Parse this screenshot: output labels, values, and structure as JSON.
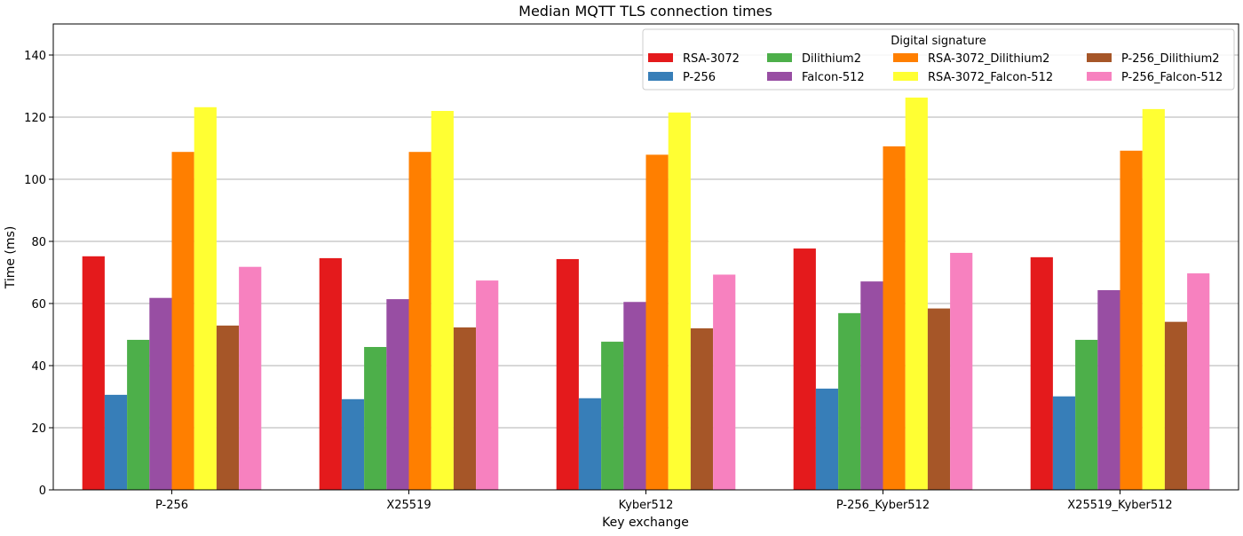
{
  "chart_data": {
    "type": "bar",
    "title": "Median MQTT TLS connection times",
    "xlabel": "Key exchange",
    "ylabel": "Time (ms)",
    "ylim": [
      0,
      150
    ],
    "yticks": [
      0,
      20,
      40,
      60,
      80,
      100,
      120,
      140
    ],
    "grid": "y-major",
    "legend": {
      "title": "Digital signature",
      "placement": "top-right",
      "columns": 4
    },
    "categories": [
      "P-256",
      "X25519",
      "Kyber512",
      "P-256_Kyber512",
      "X25519_Kyber512"
    ],
    "series": [
      {
        "name": "RSA-3072",
        "color": "#e41a1c",
        "values": [
          75.2,
          74.6,
          74.3,
          77.7,
          74.9
        ]
      },
      {
        "name": "P-256",
        "color": "#377eb8",
        "values": [
          30.6,
          29.2,
          29.5,
          32.6,
          30.1
        ]
      },
      {
        "name": "Dilithium2",
        "color": "#4daf4a",
        "values": [
          48.3,
          46.0,
          47.7,
          56.9,
          48.3
        ]
      },
      {
        "name": "Falcon-512",
        "color": "#984ea3",
        "values": [
          61.8,
          61.4,
          60.5,
          67.1,
          64.3
        ]
      },
      {
        "name": "RSA-3072_Dilithium2",
        "color": "#ff7f00",
        "values": [
          108.8,
          108.8,
          107.9,
          110.6,
          109.2
        ]
      },
      {
        "name": "RSA-3072_Falcon-512",
        "color": "#ffff33",
        "values": [
          123.2,
          122.0,
          121.5,
          126.3,
          122.6
        ]
      },
      {
        "name": "P-256_Dilithium2",
        "color": "#a65628",
        "values": [
          52.9,
          52.3,
          52.0,
          58.4,
          54.1
        ]
      },
      {
        "name": "P-256_Falcon-512",
        "color": "#f781bf",
        "values": [
          71.8,
          67.4,
          69.3,
          76.3,
          69.7
        ]
      }
    ]
  }
}
